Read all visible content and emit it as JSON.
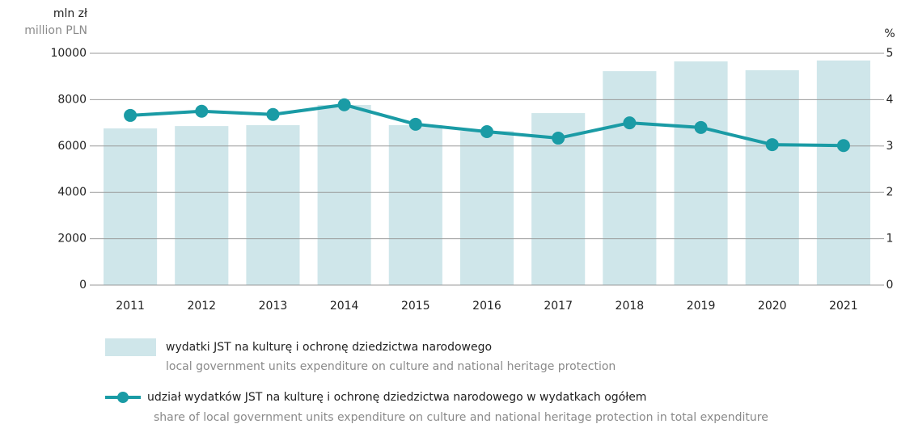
{
  "chart_data": {
    "type": "bar-line",
    "ylabel": "mln zł",
    "ylabel_en": "million PLN",
    "y2label": "%",
    "categories": [
      "2011",
      "2012",
      "2013",
      "2014",
      "2015",
      "2016",
      "2017",
      "2018",
      "2019",
      "2020",
      "2021"
    ],
    "series": [
      {
        "name": "wydatki JST na kulturę i ochronę dziedzictwa narodowego",
        "name_en": "local government units expenditure on culture and national heritage protection",
        "type": "bar",
        "color": "#cfe6ea",
        "values": [
          6760,
          6860,
          6900,
          7770,
          6900,
          6650,
          7420,
          9230,
          9650,
          9270,
          9690
        ]
      },
      {
        "name": "udział wydatków JST na kulturę i ochronę dziedzictwa narodowego w wydatkach ogółem",
        "name_en": "share of local government units expenditure on culture and national heritage protection in total expenditure",
        "type": "line",
        "axis": "y2",
        "color": "#1a9ba5",
        "values": [
          3.66,
          3.75,
          3.68,
          3.89,
          3.47,
          3.31,
          3.17,
          3.5,
          3.4,
          3.03,
          3.01
        ]
      }
    ],
    "ylim": [
      0,
      10000
    ],
    "yticks": [
      0,
      2000,
      4000,
      6000,
      8000,
      10000
    ],
    "y2lim": [
      0,
      5
    ],
    "y2ticks": [
      0,
      1,
      2,
      3,
      4,
      5
    ],
    "grid": true
  }
}
